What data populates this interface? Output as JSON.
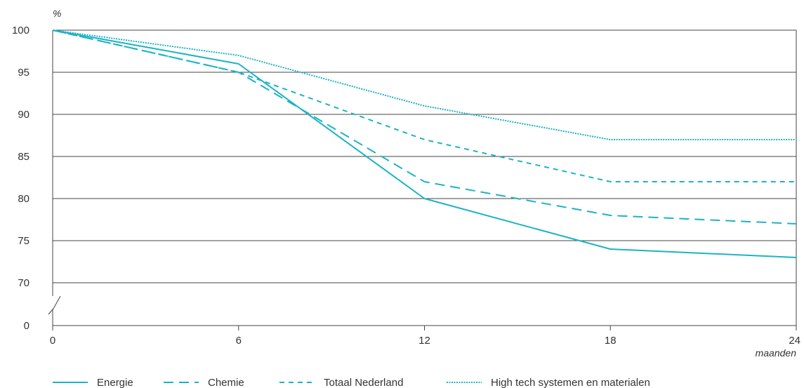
{
  "chart_data": {
    "type": "line",
    "title": "",
    "ylabel": "%",
    "xlabel": "maanden",
    "x": [
      0,
      6,
      12,
      18,
      24
    ],
    "xticks": [
      "0",
      "6",
      "12",
      "18",
      "24"
    ],
    "yticks": [
      "100",
      "95",
      "90",
      "85",
      "80",
      "75",
      "70",
      "0"
    ],
    "ylim": [
      70,
      100
    ],
    "y_axis_break": true,
    "grid": true,
    "legend_position": "bottom",
    "line_color": "#1db3c4",
    "series": [
      {
        "name": "Energie",
        "style": "solid",
        "values": [
          100,
          96,
          80,
          74,
          73
        ]
      },
      {
        "name": "Chemie",
        "style": "long-dash",
        "values": [
          100,
          95,
          82,
          78,
          77
        ]
      },
      {
        "name": "Totaal Nederland",
        "style": "dash",
        "values": [
          100,
          95,
          87,
          82,
          82
        ]
      },
      {
        "name": "High tech systemen en materialen",
        "style": "dotted",
        "values": [
          100,
          97,
          91,
          87,
          87
        ]
      }
    ]
  }
}
